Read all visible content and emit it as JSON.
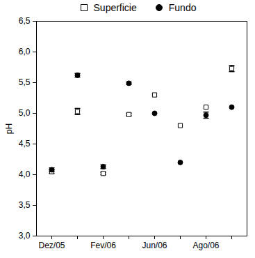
{
  "chart_data": {
    "type": "scatter",
    "y_label": "pH",
    "categories": [
      "Dez/05",
      null,
      "Fev/06",
      null,
      "Jun/06",
      null,
      "Ago/06",
      null
    ],
    "series": [
      {
        "name": "Superficie",
        "color": "#000000",
        "marker": "open-square",
        "values": [
          4.05,
          5.03,
          4.02,
          4.98,
          5.3,
          4.8,
          5.1,
          5.73
        ],
        "errors": [
          0.03,
          0.05,
          0.02,
          0.02,
          0,
          0,
          0,
          0.05
        ]
      },
      {
        "name": "Fundo",
        "color": "#000000",
        "marker": "circle",
        "values": [
          4.08,
          5.62,
          4.13,
          5.49,
          5.0,
          4.2,
          4.97,
          5.1
        ],
        "errors": [
          0.03,
          0.03,
          0.03,
          0.02,
          0,
          0,
          0.05,
          0
        ]
      }
    ],
    "ylim": [
      3.0,
      6.5
    ],
    "yticks": [
      {
        "value": 3.0,
        "label": "3,0"
      },
      {
        "value": 3.5,
        "label": "3,5"
      },
      {
        "value": 4.0,
        "label": "4,0"
      },
      {
        "value": 4.5,
        "label": "4,5"
      },
      {
        "value": 5.0,
        "label": "5,0"
      },
      {
        "value": 5.5,
        "label": "5,5"
      },
      {
        "value": 6.0,
        "label": "6,0"
      },
      {
        "value": 6.5,
        "label": "6,5"
      }
    ],
    "legend": "top",
    "grid": false
  }
}
